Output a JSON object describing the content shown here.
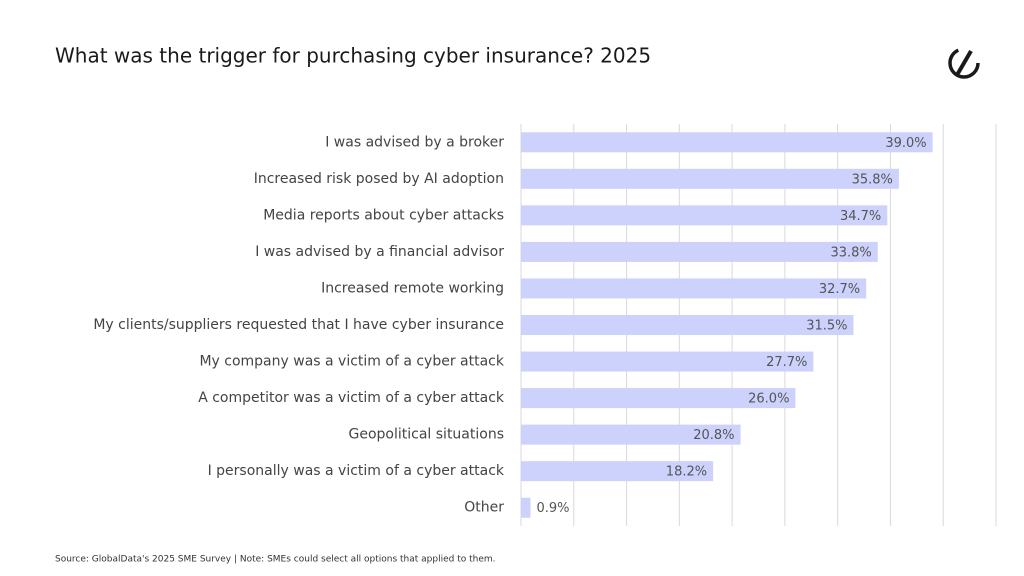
{
  "chart_data": {
    "type": "bar",
    "orientation": "horizontal",
    "title": "What was the trigger for purchasing cyber insurance? 2025",
    "source": "Source: GlobalData's 2025 SME Survey | Note: SMEs could select all options that applied to them.",
    "categories": [
      "I was advised by a broker",
      "Increased risk posed by AI adoption",
      "Media reports about cyber attacks",
      "I was advised by a financial advisor",
      "Increased remote working",
      "My clients/suppliers requested that I have cyber insurance",
      "My company was a victim of a cyber attack",
      "A competitor was a victim of a cyber attack",
      "Geopolitical situations",
      "I personally was a victim of a cyber attack",
      "Other"
    ],
    "values": [
      39.0,
      35.8,
      34.7,
      33.8,
      32.7,
      31.5,
      27.7,
      26.0,
      20.8,
      18.2,
      0.9
    ],
    "value_labels": [
      "39.0%",
      "35.8%",
      "34.7%",
      "33.8%",
      "32.7%",
      "31.5%",
      "27.7%",
      "26.0%",
      "20.8%",
      "18.2%",
      "0.9%"
    ],
    "color": "#ccd2fb",
    "xlim": [
      0,
      45
    ],
    "xticks": [
      0,
      5,
      10,
      15,
      20,
      25,
      30,
      35,
      40,
      45
    ],
    "grid": true
  }
}
